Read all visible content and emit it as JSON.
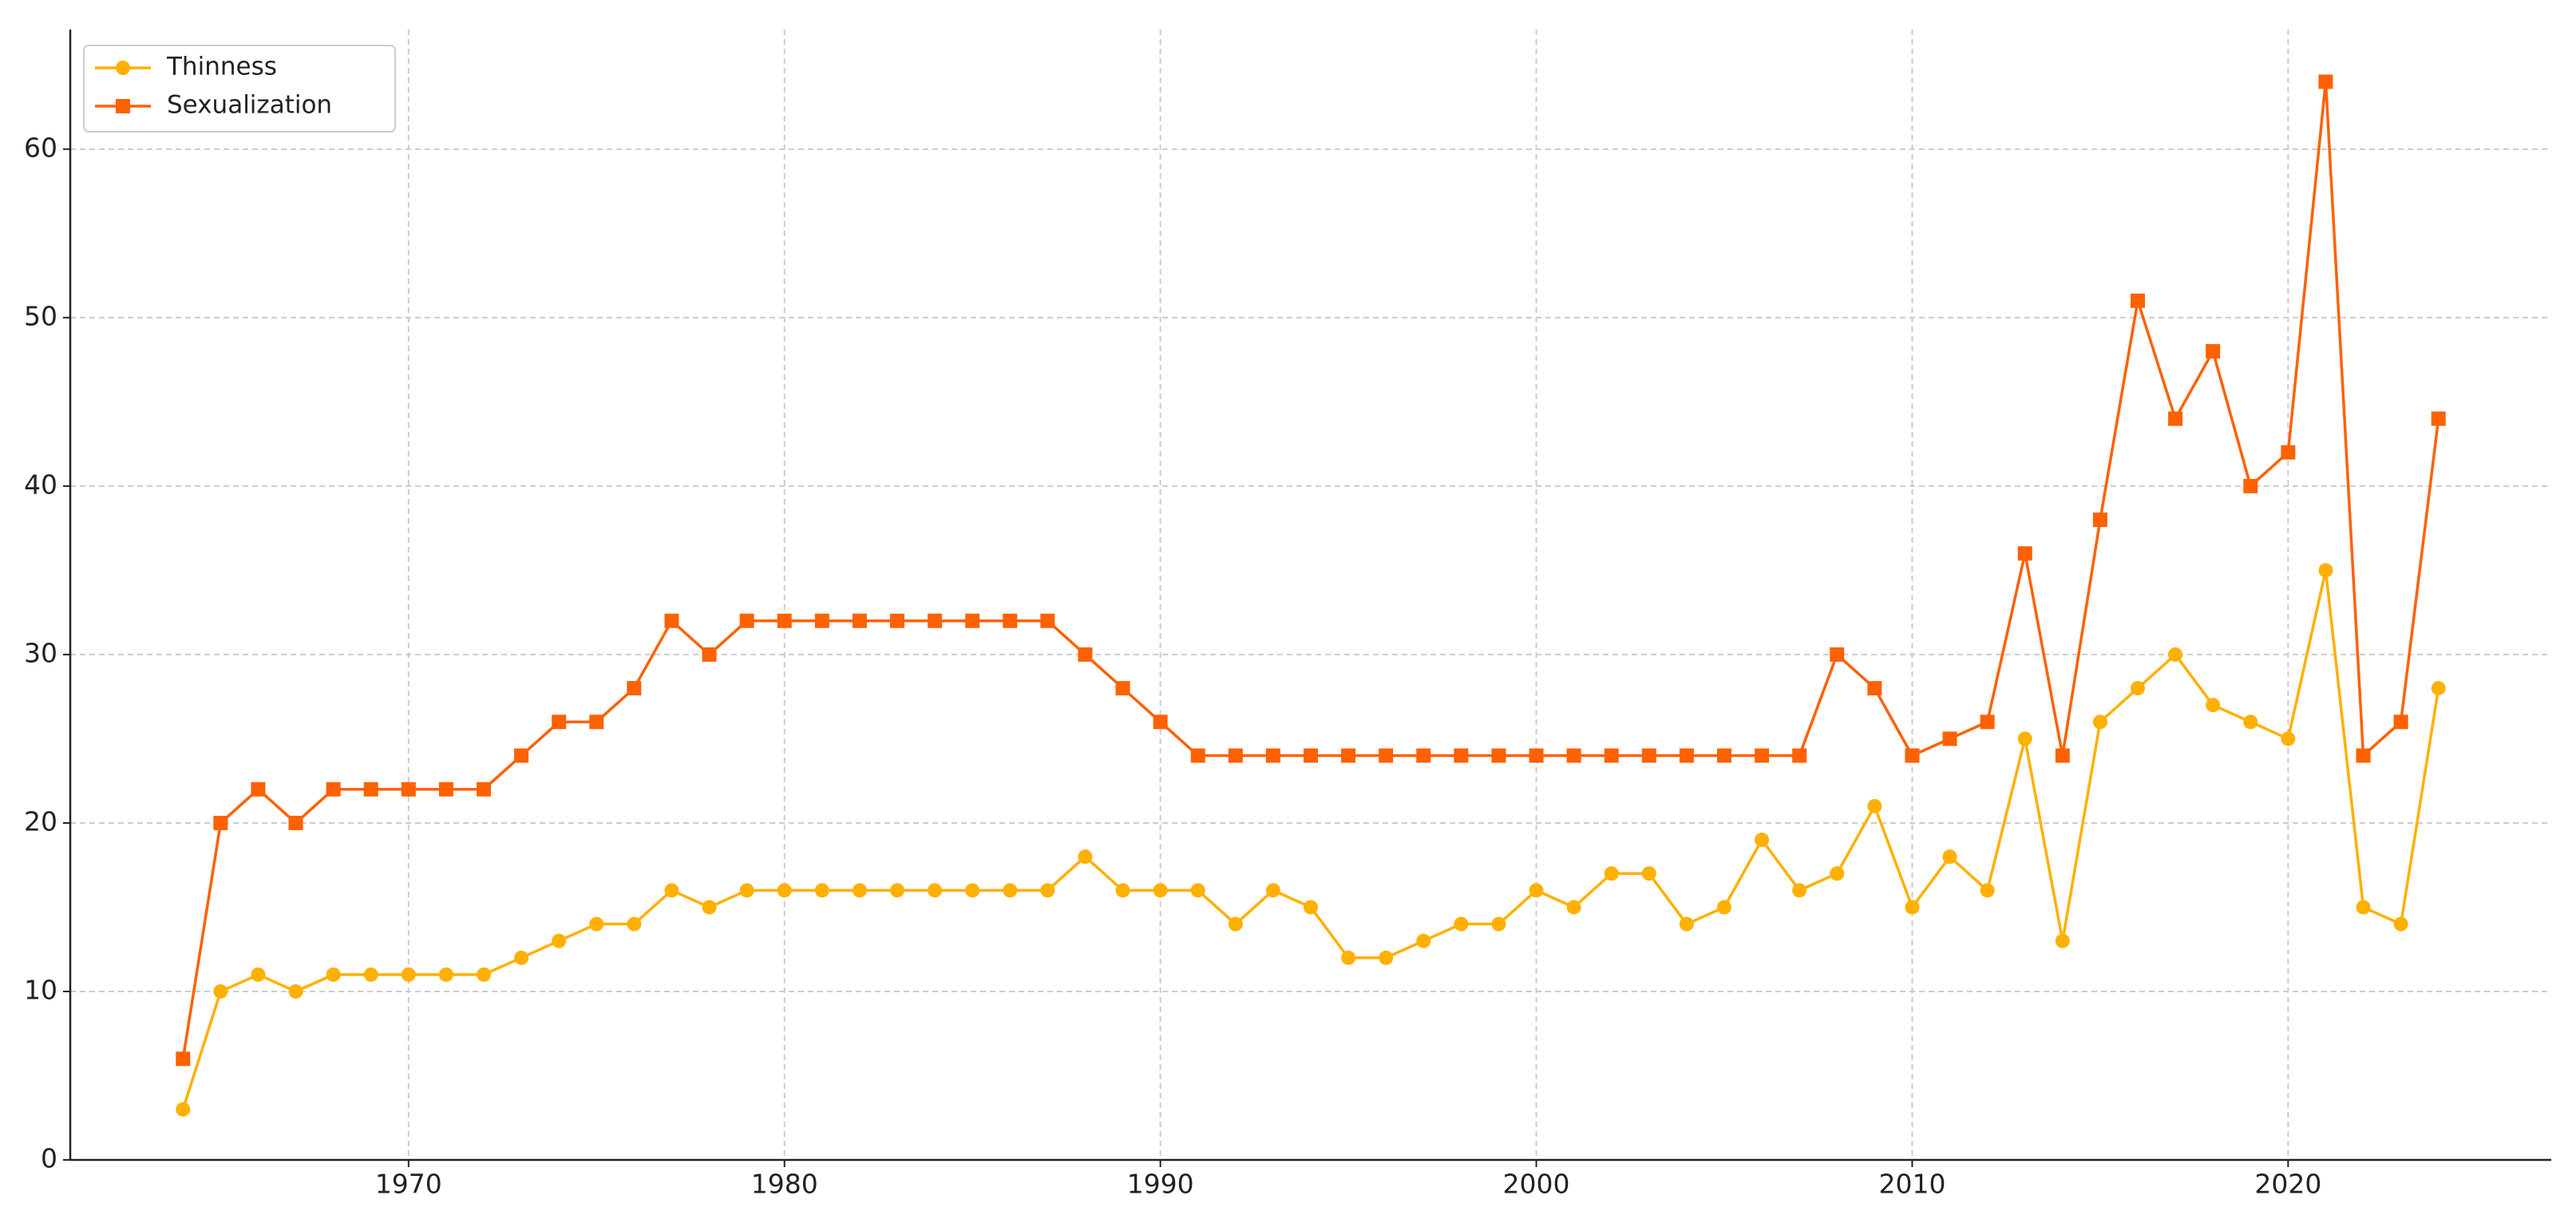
{
  "chart_data": {
    "type": "line",
    "x": [
      1964,
      1965,
      1966,
      1967,
      1968,
      1969,
      1970,
      1971,
      1972,
      1973,
      1974,
      1975,
      1976,
      1977,
      1978,
      1979,
      1980,
      1981,
      1982,
      1983,
      1984,
      1985,
      1986,
      1987,
      1988,
      1989,
      1990,
      1991,
      1992,
      1993,
      1994,
      1995,
      1996,
      1997,
      1998,
      1999,
      2000,
      2001,
      2002,
      2003,
      2004,
      2005,
      2006,
      2007,
      2008,
      2009,
      2010,
      2011,
      2012,
      2013,
      2014,
      2015,
      2016,
      2017,
      2018,
      2019,
      2020,
      2021,
      2022,
      2023,
      2024
    ],
    "series": [
      {
        "name": "Thinness",
        "color": "#ffb000",
        "marker": "circle",
        "values": [
          3,
          10,
          11,
          10,
          11,
          11,
          11,
          11,
          11,
          12,
          13,
          14,
          14,
          16,
          15,
          16,
          16,
          16,
          16,
          16,
          16,
          16,
          16,
          16,
          18,
          16,
          16,
          16,
          14,
          16,
          15,
          12,
          12,
          13,
          14,
          14,
          16,
          15,
          17,
          17,
          14,
          15,
          19,
          16,
          17,
          21,
          15,
          18,
          16,
          25,
          13,
          26,
          28,
          30,
          27,
          26,
          25,
          35,
          15,
          14,
          28
        ]
      },
      {
        "name": "Sexualization",
        "color": "#fe6100",
        "marker": "square",
        "values": [
          6,
          20,
          22,
          20,
          22,
          22,
          22,
          22,
          22,
          24,
          26,
          26,
          28,
          32,
          30,
          32,
          32,
          32,
          32,
          32,
          32,
          32,
          32,
          32,
          30,
          28,
          26,
          24,
          24,
          24,
          24,
          24,
          24,
          24,
          24,
          24,
          24,
          24,
          24,
          24,
          24,
          24,
          24,
          24,
          30,
          28,
          24,
          25,
          26,
          36,
          24,
          38,
          51,
          44,
          48,
          40,
          42,
          64,
          24,
          26,
          44
        ]
      }
    ],
    "xlim": [
      1961,
      2027
    ],
    "xticks": [
      1970,
      1980,
      1990,
      2000,
      2010,
      2020
    ],
    "ylim": [
      0,
      67.1
    ],
    "yticks": [
      0,
      10,
      20,
      30,
      40,
      50,
      60
    ],
    "grid": true,
    "legend": "upper-left"
  }
}
